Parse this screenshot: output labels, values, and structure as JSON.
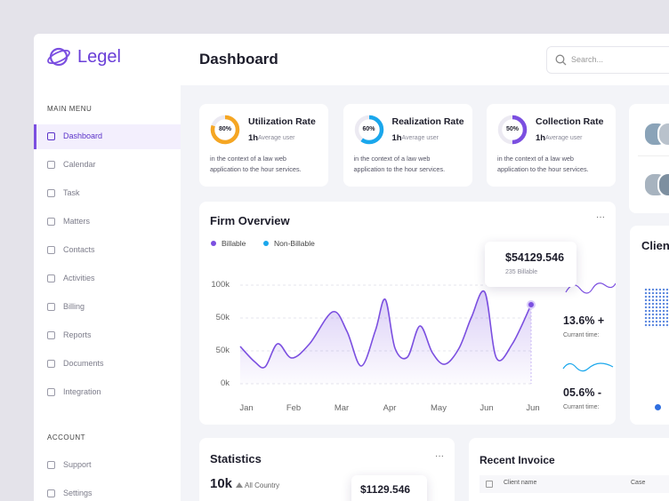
{
  "brand": "Legel",
  "menu": {
    "heading": "MAIN MENU",
    "items": [
      "Dashboard",
      "Calendar",
      "Task",
      "Matters",
      "Contacts",
      "Activities",
      "Billing",
      "Reports",
      "Documents",
      "Integration"
    ]
  },
  "account": {
    "heading": "ACCOUNT",
    "items": [
      "Support",
      "Settings"
    ]
  },
  "header": {
    "title": "Dashboard",
    "search_placeholder": "Search..."
  },
  "rate_cards": [
    {
      "title": "Utilization Rate",
      "percent": 80,
      "percent_label": "80%",
      "hours": "1h",
      "hours_note": "Average user",
      "description": "in the context of a law web application to the hour services.",
      "color": "#f5a623"
    },
    {
      "title": "Realization Rate",
      "percent": 60,
      "percent_label": "60%",
      "hours": "1h",
      "hours_note": "Average user",
      "description": "in the context of a law web application to the hour services.",
      "color": "#1aa7ec"
    },
    {
      "title": "Collection Rate",
      "percent": 50,
      "percent_label": "50%",
      "hours": "1h",
      "hours_note": "Average user",
      "description": "in the context of a law web application to the hour services.",
      "color": "#7b4fe0"
    }
  ],
  "firm_overview": {
    "title": "Firm Overview",
    "legend": [
      {
        "name": "Billable",
        "color": "#7b4fe0"
      },
      {
        "name": "Non-Billable",
        "color": "#1aa7ec"
      }
    ],
    "yticks": [
      "100k",
      "50k",
      "50k",
      "0k"
    ],
    "months": [
      "Jan",
      "Feb",
      "Mar",
      "Apr",
      "May",
      "Jun",
      "Jun"
    ],
    "tooltip": {
      "amount": "$54129.546",
      "note": "235 Billable"
    },
    "metrics": [
      {
        "value": "13.6% +",
        "note": "Currant time:"
      },
      {
        "value": "05.6% -",
        "note": "Currant time:"
      }
    ]
  },
  "client_card": {
    "title": "Client"
  },
  "statistics": {
    "title": "Statistics",
    "value": "10k",
    "note": "All Country",
    "tooltip": "$1129.546"
  },
  "recent_invoice": {
    "title": "Recent Invoice",
    "columns": [
      "Client name",
      "Case"
    ]
  }
}
